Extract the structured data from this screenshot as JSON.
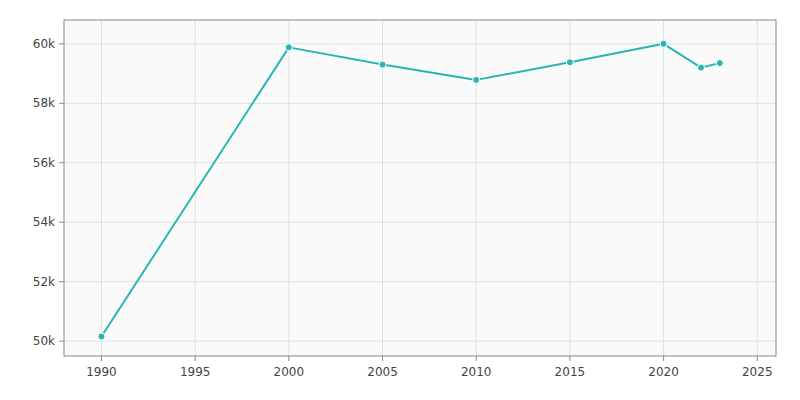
{
  "chart_data": {
    "type": "line",
    "x": [
      1990,
      2000,
      2005,
      2010,
      2015,
      2020,
      2022,
      2023
    ],
    "values": [
      50156,
      59880,
      59300,
      58786,
      59380,
      60000,
      59200,
      59350
    ],
    "color": "#2ab5b5",
    "marker": "circle",
    "xlim": [
      1988,
      2026
    ],
    "ylim": [
      49500,
      60800
    ],
    "xticks": [
      1990,
      1995,
      2000,
      2005,
      2010,
      2015,
      2020,
      2025
    ],
    "yticks": [
      {
        "value": 50000,
        "label": "50k"
      },
      {
        "value": 52000,
        "label": "52k"
      },
      {
        "value": 54000,
        "label": "54k"
      },
      {
        "value": 56000,
        "label": "56k"
      },
      {
        "value": 58000,
        "label": "58k"
      },
      {
        "value": 60000,
        "label": "60k"
      }
    ],
    "grid": true
  }
}
